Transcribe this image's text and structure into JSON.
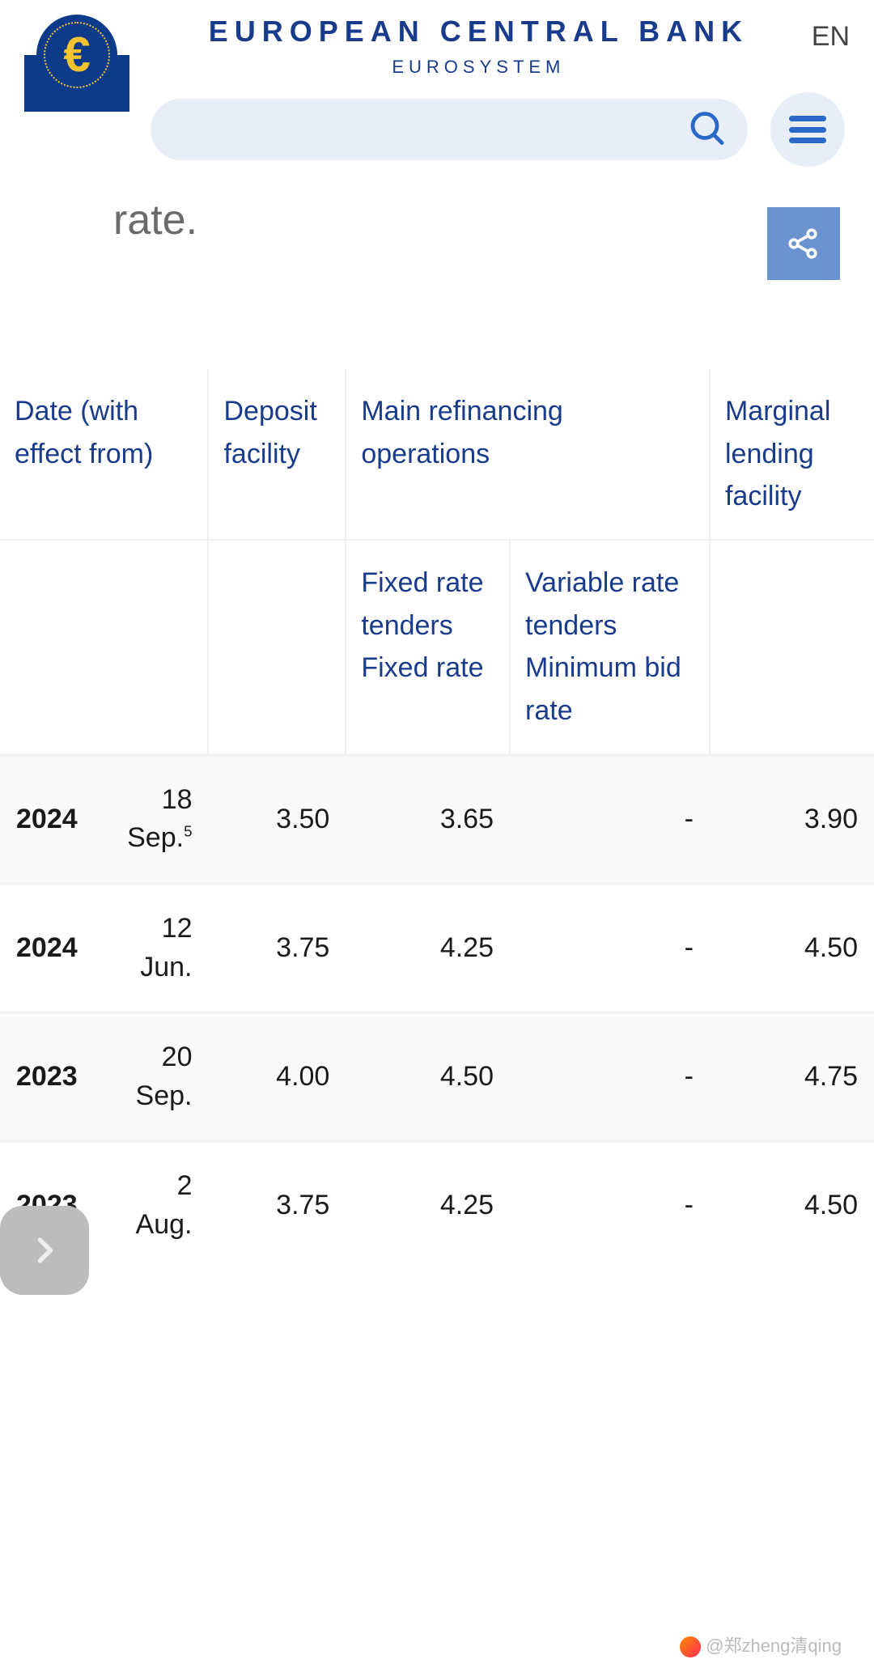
{
  "header": {
    "title": "EUROPEAN CENTRAL BANK",
    "subtitle": "EUROSYSTEM",
    "euro_symbol": "€",
    "language_label": "EN",
    "search_placeholder": ""
  },
  "partial_body_text": "rate.",
  "colors": {
    "brand_blue": "#183b8b",
    "accent_blue": "#2a69c9",
    "share_bg": "#6a93d0",
    "search_bg": "#e7eef8",
    "logo_bg": "#0e3a8a",
    "logo_gold": "#f4c430",
    "row_alt_bg": "#fafafa",
    "border": "#f0f0f0",
    "nav_fab": "#bcbcbc"
  },
  "table": {
    "columns": {
      "date": "Date (with effect from)",
      "deposit": "Deposit facility",
      "main_refi": "Main refinancing operations",
      "marginal": "Marginal lending facility",
      "sub_fixed": "Fixed rate tenders Fixed rate",
      "sub_variable": "Variable rate tenders Minimum bid rate"
    },
    "rows": [
      {
        "year": "2024",
        "date": "18 Sep.",
        "sup": "5",
        "deposit": "3.50",
        "fixed": "3.65",
        "variable": "-",
        "marginal": "3.90"
      },
      {
        "year": "2024",
        "date": "12 Jun.",
        "sup": "",
        "deposit": "3.75",
        "fixed": "4.25",
        "variable": "-",
        "marginal": "4.50"
      },
      {
        "year": "2023",
        "date": "20 Sep.",
        "sup": "",
        "deposit": "4.00",
        "fixed": "4.50",
        "variable": "-",
        "marginal": "4.75"
      },
      {
        "year": "2023",
        "date": "2 Aug.",
        "sup": "",
        "deposit": "3.75",
        "fixed": "4.25",
        "variable": "-",
        "marginal": "4.50"
      }
    ]
  },
  "watermark": "@郑zheng清qing"
}
